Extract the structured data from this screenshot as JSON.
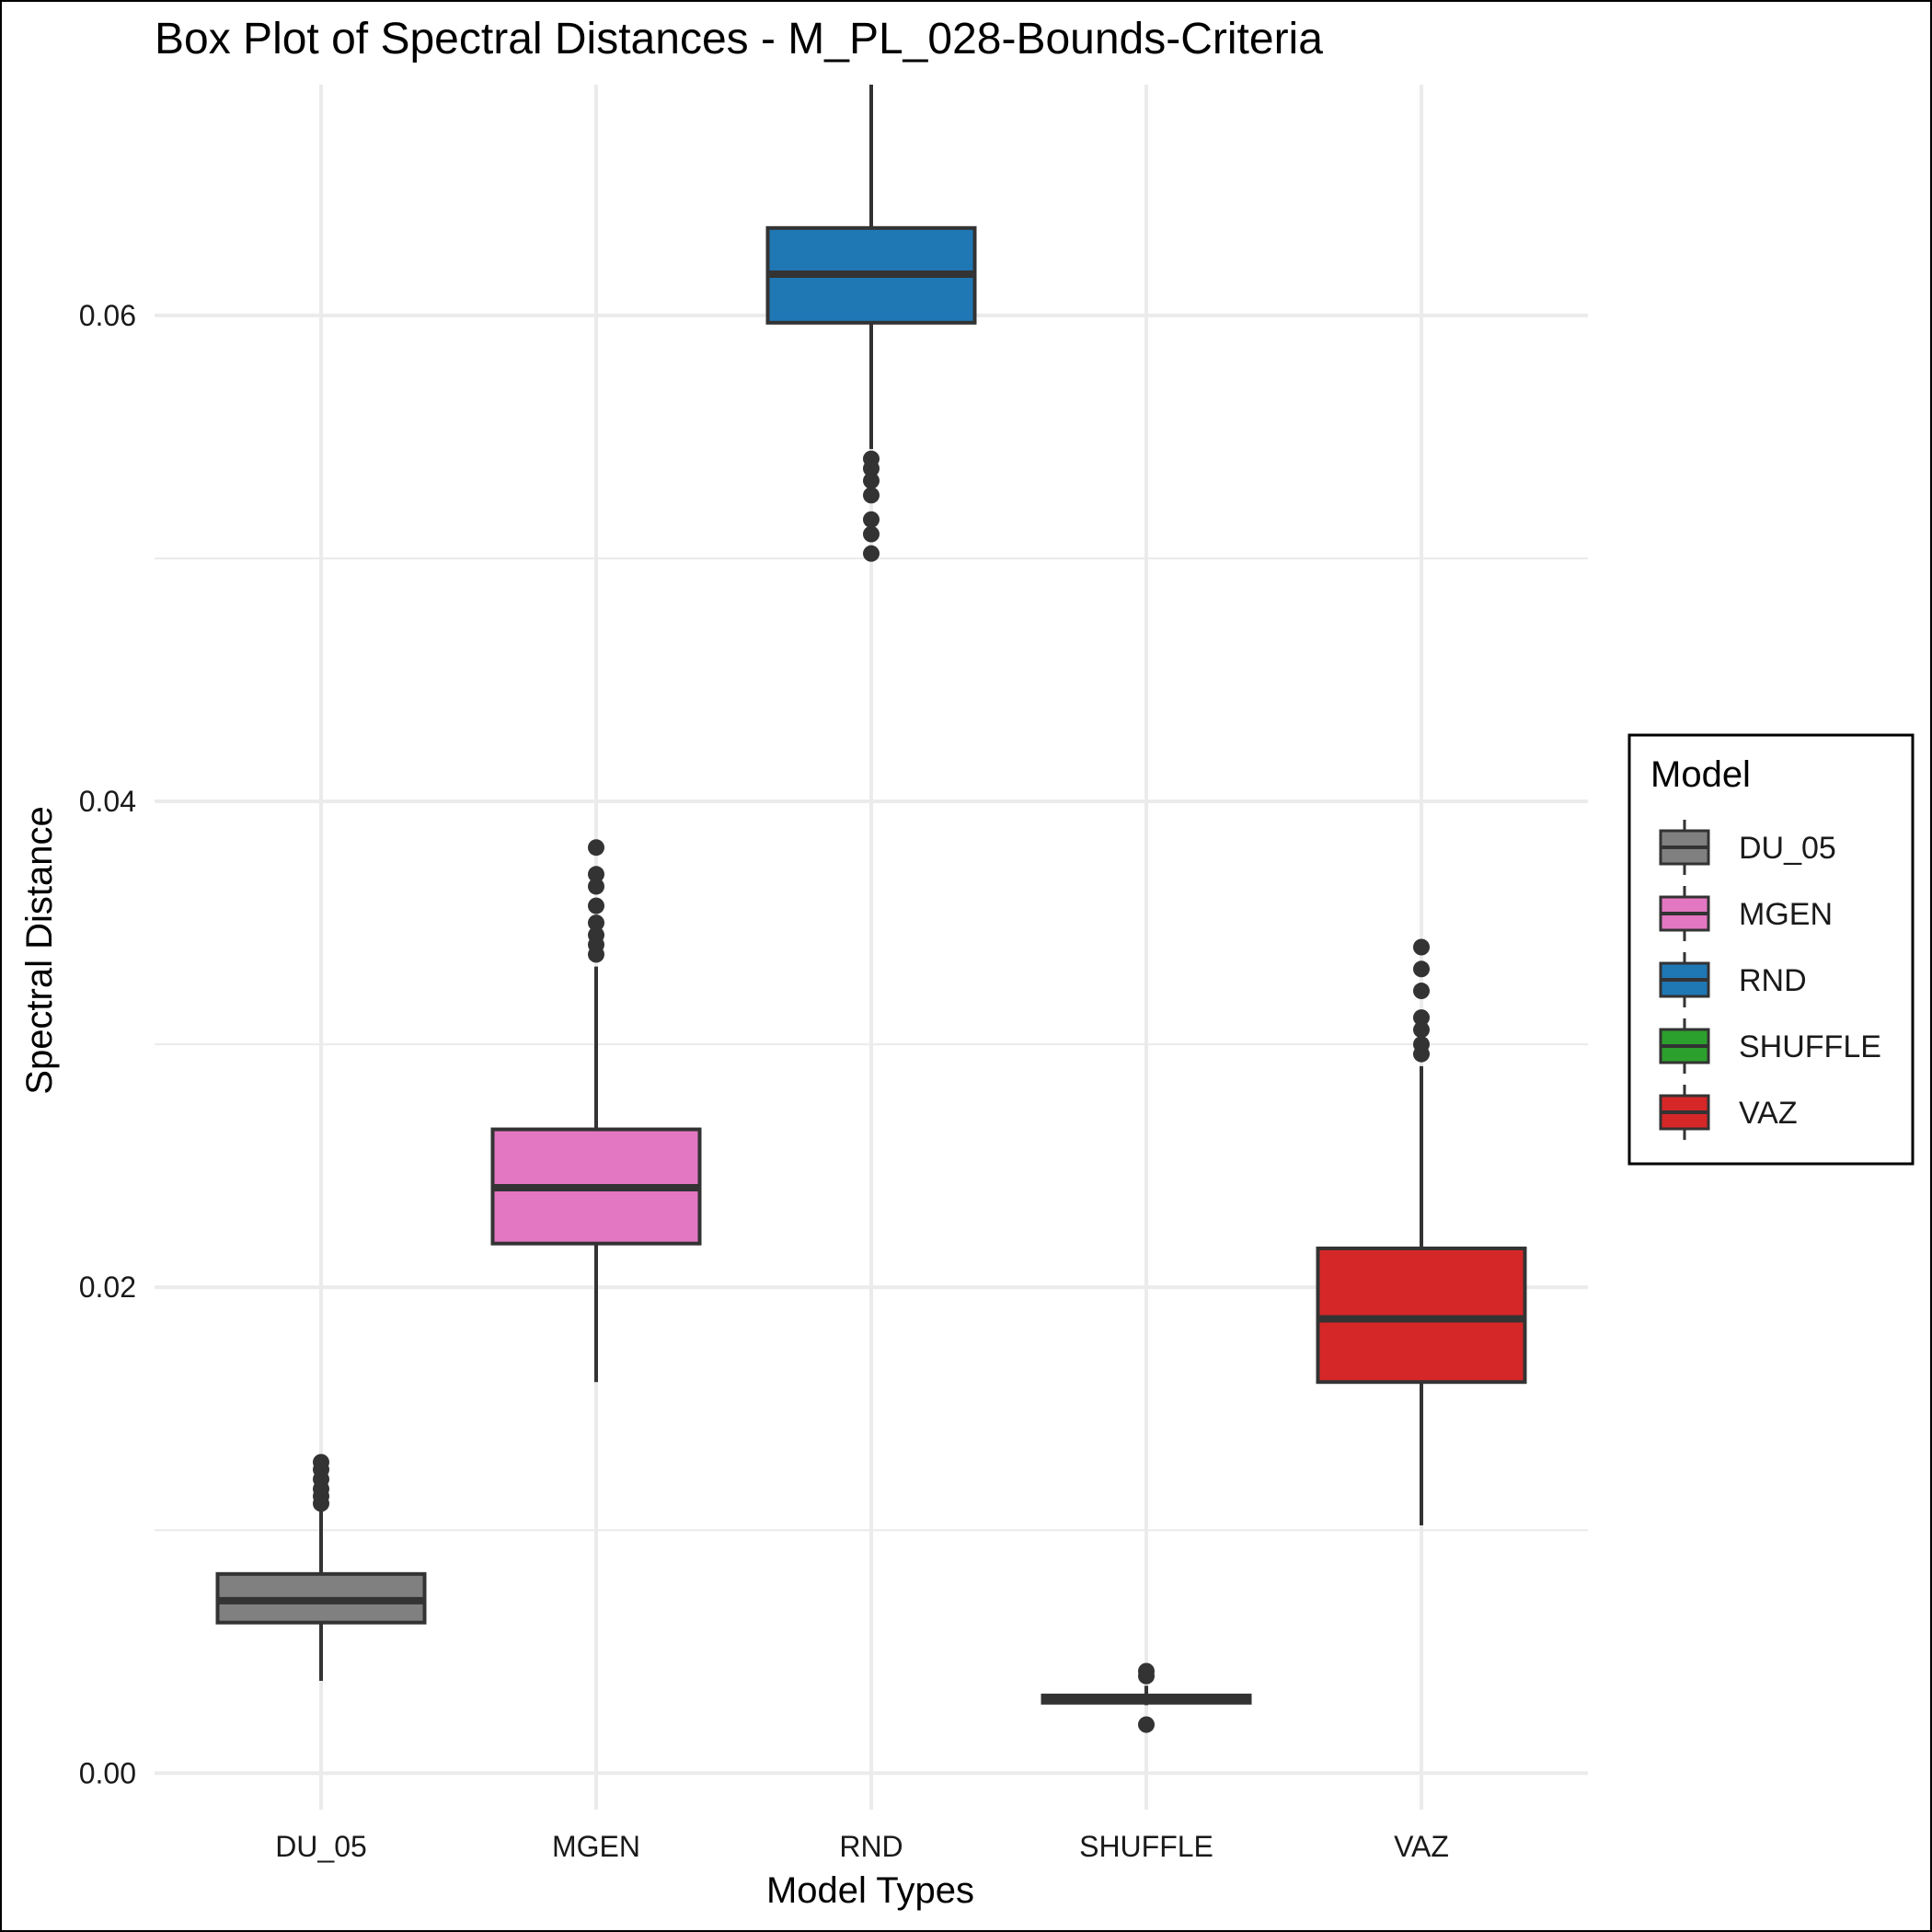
{
  "chart_data": {
    "type": "box",
    "title": "Box Plot of Spectral Distances -  M_PL_028-Bounds-Criteria",
    "xlabel": "Model Types",
    "ylabel": "Spectral Distance",
    "ylim": [
      -0.0015,
      0.0695
    ],
    "yticks": [
      0.0,
      0.02,
      0.04,
      0.06
    ],
    "ytick_labels": [
      "0.00",
      "0.02",
      "0.04",
      "0.06"
    ],
    "grid": true,
    "legend": {
      "title": "Model",
      "placement": "right",
      "entries": [
        "DU_05",
        "MGEN",
        "RND",
        "SHUFFLE",
        "VAZ"
      ]
    },
    "categories": [
      "DU_05",
      "MGEN",
      "RND",
      "SHUFFLE",
      "VAZ"
    ],
    "series": [
      {
        "name": "DU_05",
        "color": "#808080",
        "whisker_low": 0.0038,
        "q1": 0.0062,
        "median": 0.0071,
        "q3": 0.0082,
        "whisker_high": 0.0109,
        "outliers": [
          0.0111,
          0.0114,
          0.0117,
          0.0121,
          0.0125,
          0.0128
        ]
      },
      {
        "name": "MGEN",
        "color": "#e377c2",
        "whisker_low": 0.0161,
        "q1": 0.0218,
        "median": 0.0241,
        "q3": 0.0265,
        "whisker_high": 0.0332,
        "outliers": [
          0.0337,
          0.0341,
          0.0345,
          0.035,
          0.0357,
          0.0365,
          0.037,
          0.0381
        ]
      },
      {
        "name": "RND",
        "color": "#1f77b4",
        "whisker_low": 0.0545,
        "q1": 0.0597,
        "median": 0.0617,
        "q3": 0.0636,
        "whisker_high": 0.0695,
        "outliers": [
          0.0502,
          0.051,
          0.0516,
          0.0526,
          0.0532,
          0.0537,
          0.0541
        ]
      },
      {
        "name": "SHUFFLE",
        "color": "#2ca02c",
        "whisker_low": 0.0028,
        "q1": 0.0029,
        "median": 0.0031,
        "q3": 0.0032,
        "whisker_high": 0.0036,
        "outliers": [
          0.002,
          0.004,
          0.0042
        ]
      },
      {
        "name": "VAZ",
        "color": "#d62728",
        "whisker_low": 0.0102,
        "q1": 0.0161,
        "median": 0.0187,
        "q3": 0.0216,
        "whisker_high": 0.0291,
        "outliers": [
          0.0296,
          0.03,
          0.0306,
          0.0311,
          0.0322,
          0.0331,
          0.034
        ]
      }
    ]
  }
}
